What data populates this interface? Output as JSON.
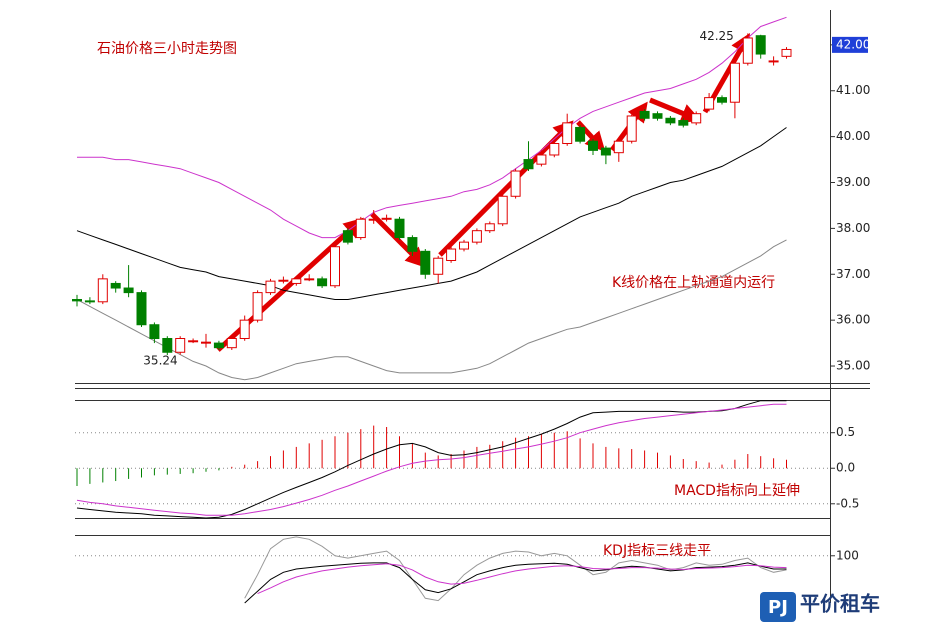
{
  "chart_data": [
    {
      "type": "candlestick",
      "title": "石油价格三小时走势图",
      "note": "K线价格在上轨通道内运行",
      "up_color": "#e00000",
      "down_color": "#008000",
      "open": [
        36.45,
        36.42,
        36.4,
        36.8,
        36.7,
        36.6,
        35.9,
        35.6,
        35.3,
        35.55,
        35.5,
        35.5,
        35.4,
        35.6,
        36.0,
        36.6,
        36.85,
        36.8,
        36.9,
        36.9,
        36.75,
        37.95,
        37.8,
        38.2,
        38.2,
        38.2,
        37.8,
        37.5,
        37.0,
        37.3,
        37.55,
        37.7,
        37.95,
        38.1,
        38.7,
        39.5,
        39.4,
        39.6,
        39.85,
        40.2,
        39.9,
        39.75,
        39.65,
        39.9,
        40.55,
        40.5,
        40.4,
        40.35,
        40.3,
        40.6,
        40.85,
        40.75,
        41.6,
        42.2,
        41.65,
        41.75
      ],
      "high": [
        36.55,
        36.5,
        37.0,
        36.85,
        37.2,
        36.65,
        35.95,
        35.65,
        35.65,
        35.6,
        35.7,
        35.55,
        35.65,
        36.1,
        36.65,
        36.9,
        36.95,
        36.95,
        37.0,
        36.95,
        37.7,
        38.0,
        38.25,
        38.4,
        38.3,
        38.25,
        37.85,
        37.55,
        37.4,
        37.6,
        37.75,
        38.0,
        38.15,
        38.75,
        39.3,
        39.9,
        39.7,
        39.9,
        40.5,
        40.25,
        39.95,
        39.8,
        39.95,
        40.5,
        40.6,
        40.55,
        40.45,
        40.4,
        40.55,
        40.95,
        40.9,
        41.65,
        42.25,
        42.22,
        41.75,
        41.95
      ],
      "low": [
        36.3,
        36.35,
        36.35,
        36.6,
        36.5,
        35.85,
        35.5,
        35.24,
        35.25,
        35.5,
        35.4,
        35.35,
        35.35,
        35.55,
        35.95,
        36.55,
        36.8,
        36.75,
        36.85,
        36.7,
        36.7,
        37.65,
        37.75,
        38.1,
        38.15,
        37.75,
        37.4,
        36.9,
        36.8,
        37.25,
        37.5,
        37.65,
        37.9,
        38.05,
        38.65,
        39.25,
        39.35,
        39.55,
        39.8,
        39.85,
        39.6,
        39.4,
        39.45,
        39.85,
        40.35,
        40.35,
        40.25,
        40.2,
        40.25,
        40.55,
        40.7,
        40.4,
        41.55,
        41.7,
        41.55,
        41.7
      ],
      "close": [
        36.42,
        36.4,
        36.9,
        36.7,
        36.6,
        35.9,
        35.6,
        35.3,
        35.6,
        35.55,
        35.52,
        35.4,
        35.6,
        36.0,
        36.6,
        36.85,
        36.87,
        36.9,
        36.9,
        36.75,
        37.6,
        37.7,
        38.2,
        38.2,
        38.22,
        37.8,
        37.5,
        37.0,
        37.35,
        37.55,
        37.7,
        37.95,
        38.1,
        38.7,
        39.25,
        39.3,
        39.6,
        39.85,
        40.3,
        39.9,
        39.7,
        39.6,
        39.9,
        40.45,
        40.4,
        40.4,
        40.3,
        40.25,
        40.5,
        40.85,
        40.75,
        41.6,
        42.15,
        41.8,
        41.65,
        41.9
      ],
      "high_labels": [
        null,
        null,
        null,
        null,
        null,
        null,
        null,
        null,
        null,
        null,
        null,
        null,
        null,
        null,
        null,
        null,
        null,
        null,
        null,
        null,
        null,
        null,
        null,
        null,
        null,
        null,
        null,
        null,
        null,
        null,
        null,
        null,
        null,
        null,
        null,
        null,
        null,
        null,
        null,
        null,
        null,
        null,
        null,
        null,
        null,
        null,
        null,
        null,
        null,
        null,
        null,
        null,
        "42.25",
        null,
        null,
        null
      ],
      "low_labels": [
        null,
        null,
        null,
        null,
        null,
        null,
        null,
        "35.24",
        null,
        null,
        null,
        null,
        null,
        null,
        null,
        null,
        null,
        null,
        null,
        null,
        null,
        null,
        null,
        null,
        null,
        null,
        null,
        null,
        null,
        null,
        null,
        null,
        null,
        null,
        null,
        null,
        null,
        null,
        null,
        null,
        null,
        null,
        null,
        null,
        null,
        null,
        null,
        null,
        null,
        null,
        null,
        null,
        null,
        null,
        null,
        null
      ],
      "series": [
        {
          "color": "#cc33cc",
          "values": [
            39.55,
            39.55,
            39.55,
            39.5,
            39.5,
            39.45,
            39.4,
            39.35,
            39.3,
            39.2,
            39.1,
            39.0,
            38.85,
            38.7,
            38.55,
            38.4,
            38.2,
            38.05,
            37.9,
            37.8,
            37.8,
            37.95,
            38.15,
            38.35,
            38.45,
            38.5,
            38.55,
            38.6,
            38.65,
            38.7,
            38.8,
            38.85,
            38.95,
            39.1,
            39.3,
            39.5,
            39.7,
            39.95,
            40.2,
            40.4,
            40.55,
            40.65,
            40.75,
            40.85,
            40.95,
            41.0,
            41.05,
            41.15,
            41.25,
            41.4,
            41.6,
            41.85,
            42.15,
            42.4,
            42.5,
            42.6
          ]
        },
        {
          "color": "#000000",
          "values": [
            37.95,
            37.85,
            37.75,
            37.65,
            37.55,
            37.45,
            37.35,
            37.25,
            37.15,
            37.1,
            37.05,
            36.95,
            36.9,
            36.85,
            36.8,
            36.75,
            36.65,
            36.6,
            36.55,
            36.5,
            36.45,
            36.45,
            36.5,
            36.55,
            36.6,
            36.65,
            36.7,
            36.75,
            36.8,
            36.85,
            36.95,
            37.05,
            37.2,
            37.35,
            37.5,
            37.65,
            37.8,
            37.95,
            38.1,
            38.25,
            38.35,
            38.45,
            38.55,
            38.7,
            38.8,
            38.9,
            39.0,
            39.05,
            39.15,
            39.25,
            39.35,
            39.5,
            39.65,
            39.8,
            40.0,
            40.2
          ]
        },
        {
          "color": "#888888",
          "values": [
            36.45,
            36.3,
            36.15,
            36.0,
            35.85,
            35.7,
            35.55,
            35.4,
            35.25,
            35.1,
            35.0,
            34.85,
            34.75,
            34.7,
            34.75,
            34.85,
            34.95,
            35.05,
            35.1,
            35.15,
            35.2,
            35.2,
            35.1,
            35.0,
            34.9,
            34.85,
            34.85,
            34.85,
            34.85,
            34.85,
            34.9,
            34.95,
            35.05,
            35.2,
            35.35,
            35.5,
            35.6,
            35.7,
            35.8,
            35.85,
            35.95,
            36.05,
            36.15,
            36.25,
            36.35,
            36.45,
            36.55,
            36.65,
            36.75,
            36.85,
            36.95,
            37.1,
            37.25,
            37.4,
            37.6,
            37.75
          ]
        }
      ],
      "current_price": 42,
      "ylim": [
        34.63,
        42.76
      ],
      "yticks": [
        {
          "value": 35,
          "label": "35.00"
        },
        {
          "value": 36,
          "label": "36.00"
        },
        {
          "value": 37,
          "label": "37.00"
        },
        {
          "value": 38,
          "label": "38.00"
        },
        {
          "value": 39,
          "label": "39.00"
        },
        {
          "value": 40,
          "label": "40.00"
        },
        {
          "value": 41,
          "label": "41.00"
        },
        {
          "value": 42,
          "label": "42.00"
        }
      ],
      "grid": false
    },
    {
      "type": "bar",
      "note": "MACD指标向上延伸",
      "up_color": "#e00000",
      "down_color": "#008000",
      "values": [
        -0.25,
        -0.22,
        -0.2,
        -0.18,
        -0.15,
        -0.13,
        -0.1,
        -0.09,
        -0.08,
        -0.07,
        -0.05,
        -0.03,
        0.02,
        0.05,
        0.1,
        0.17,
        0.25,
        0.3,
        0.35,
        0.4,
        0.45,
        0.5,
        0.55,
        0.6,
        0.58,
        0.45,
        0.35,
        0.22,
        0.18,
        0.2,
        0.25,
        0.3,
        0.33,
        0.38,
        0.43,
        0.45,
        0.48,
        0.5,
        0.52,
        0.42,
        0.35,
        0.3,
        0.28,
        0.27,
        0.25,
        0.22,
        0.18,
        0.13,
        0.1,
        0.08,
        0.05,
        0.12,
        0.2,
        0.17,
        0.14,
        0.12
      ],
      "series": [
        {
          "color": "#000000",
          "values": [
            -0.56,
            -0.58,
            -0.6,
            -0.62,
            -0.63,
            -0.64,
            -0.66,
            -0.67,
            -0.68,
            -0.69,
            -0.7,
            -0.69,
            -0.65,
            -0.58,
            -0.5,
            -0.42,
            -0.34,
            -0.27,
            -0.2,
            -0.13,
            -0.05,
            0.04,
            0.12,
            0.2,
            0.27,
            0.33,
            0.35,
            0.3,
            0.22,
            0.18,
            0.19,
            0.22,
            0.26,
            0.3,
            0.36,
            0.42,
            0.48,
            0.55,
            0.63,
            0.72,
            0.78,
            0.79,
            0.8,
            0.8,
            0.8,
            0.8,
            0.8,
            0.79,
            0.79,
            0.8,
            0.81,
            0.84,
            0.9,
            0.95,
            0.95,
            0.95
          ]
        },
        {
          "color": "#cc33cc",
          "values": [
            -0.45,
            -0.48,
            -0.5,
            -0.53,
            -0.55,
            -0.57,
            -0.59,
            -0.61,
            -0.63,
            -0.64,
            -0.66,
            -0.66,
            -0.66,
            -0.64,
            -0.61,
            -0.58,
            -0.54,
            -0.49,
            -0.44,
            -0.38,
            -0.31,
            -0.25,
            -0.18,
            -0.11,
            -0.04,
            0.02,
            0.07,
            0.1,
            0.12,
            0.13,
            0.15,
            0.18,
            0.21,
            0.24,
            0.27,
            0.3,
            0.34,
            0.38,
            0.43,
            0.5,
            0.55,
            0.6,
            0.64,
            0.67,
            0.7,
            0.72,
            0.74,
            0.76,
            0.78,
            0.8,
            0.82,
            0.84,
            0.86,
            0.88,
            0.9,
            0.9
          ]
        }
      ],
      "ylim": [
        -0.7,
        0.96
      ],
      "yticks": [
        0.5,
        {
          "value": 0,
          "label": "0.0"
        },
        -0.5
      ],
      "grid": true
    },
    {
      "type": "line",
      "note": "KDJ指标三线走平",
      "series": [
        {
          "color": "#999999",
          "values": [
            null,
            null,
            null,
            null,
            null,
            null,
            null,
            null,
            null,
            null,
            null,
            null,
            null,
            10,
            60,
            115,
            135,
            140,
            135,
            120,
            100,
            95,
            100,
            105,
            110,
            90,
            50,
            10,
            5,
            30,
            60,
            80,
            95,
            105,
            110,
            108,
            100,
            105,
            100,
            80,
            60,
            65,
            85,
            90,
            85,
            80,
            70,
            75,
            85,
            80,
            82,
            90,
            95,
            75,
            65,
            70
          ]
        },
        {
          "color": "#000000",
          "values": [
            null,
            null,
            null,
            null,
            null,
            null,
            null,
            null,
            null,
            null,
            null,
            null,
            null,
            0,
            25,
            50,
            65,
            72,
            75,
            78,
            80,
            82,
            84,
            85,
            85,
            75,
            50,
            28,
            22,
            30,
            45,
            60,
            68,
            75,
            80,
            82,
            83,
            84,
            82,
            75,
            68,
            70,
            75,
            78,
            76,
            72,
            68,
            70,
            75,
            76,
            77,
            80,
            85,
            78,
            72,
            72
          ]
        },
        {
          "color": "#cc33cc",
          "values": [
            null,
            null,
            null,
            null,
            null,
            null,
            null,
            null,
            null,
            null,
            null,
            null,
            null,
            null,
            20,
            32,
            45,
            55,
            62,
            68,
            72,
            76,
            79,
            81,
            83,
            80,
            70,
            55,
            45,
            40,
            42,
            48,
            55,
            62,
            68,
            72,
            75,
            78,
            79,
            77,
            73,
            72,
            73,
            75,
            75,
            74,
            72,
            71,
            73,
            74,
            75,
            77,
            80,
            79,
            76,
            75
          ]
        }
      ],
      "ylim": [
        0,
        144
      ],
      "yticks": [
        100
      ],
      "grid": true
    }
  ],
  "logo": {
    "mark": "PJ",
    "name": "平价租车"
  }
}
